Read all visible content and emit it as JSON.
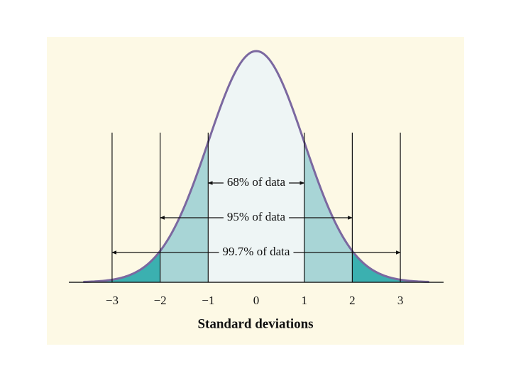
{
  "chart_data": {
    "type": "normal",
    "xlabel": "Standard deviations",
    "xlim": [
      -3.9,
      3.9
    ],
    "xticks": [
      {
        "value": -3,
        "label": "−3"
      },
      {
        "value": -2,
        "label": "−2"
      },
      {
        "value": -1,
        "label": "−1"
      },
      0,
      1,
      2,
      3
    ],
    "annotations": [
      {
        "label": "68% of data",
        "range": [
          -1,
          1
        ]
      },
      {
        "label": "95% of data",
        "range": [
          -2,
          2
        ]
      },
      {
        "label": "99.7% of data",
        "range": [
          -3,
          3
        ]
      }
    ],
    "curve_color": "#7b68a0",
    "region_colors": [
      "#eef5f5",
      "#a8d5d6",
      "#3bb0b0"
    ]
  }
}
